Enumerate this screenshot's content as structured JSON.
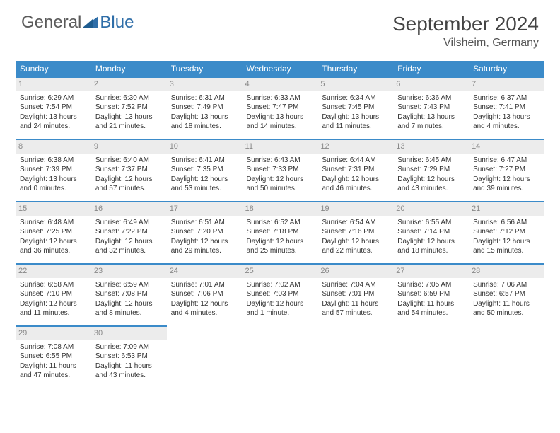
{
  "brand": {
    "part1": "General",
    "part2": "Blue",
    "part1_color": "#6a6a6a",
    "part2_color": "#2f6ea8"
  },
  "title": "September 2024",
  "location": "Vilsheim, Germany",
  "colors": {
    "header_bg": "#3b8bc9",
    "day_bg": "#ececec",
    "accent": "#3b8bc9"
  },
  "weekdays": [
    "Sunday",
    "Monday",
    "Tuesday",
    "Wednesday",
    "Thursday",
    "Friday",
    "Saturday"
  ],
  "days": [
    {
      "n": "1",
      "sr": "6:29 AM",
      "ss": "7:54 PM",
      "dl": "13 hours and 24 minutes."
    },
    {
      "n": "2",
      "sr": "6:30 AM",
      "ss": "7:52 PM",
      "dl": "13 hours and 21 minutes."
    },
    {
      "n": "3",
      "sr": "6:31 AM",
      "ss": "7:49 PM",
      "dl": "13 hours and 18 minutes."
    },
    {
      "n": "4",
      "sr": "6:33 AM",
      "ss": "7:47 PM",
      "dl": "13 hours and 14 minutes."
    },
    {
      "n": "5",
      "sr": "6:34 AM",
      "ss": "7:45 PM",
      "dl": "13 hours and 11 minutes."
    },
    {
      "n": "6",
      "sr": "6:36 AM",
      "ss": "7:43 PM",
      "dl": "13 hours and 7 minutes."
    },
    {
      "n": "7",
      "sr": "6:37 AM",
      "ss": "7:41 PM",
      "dl": "13 hours and 4 minutes."
    },
    {
      "n": "8",
      "sr": "6:38 AM",
      "ss": "7:39 PM",
      "dl": "13 hours and 0 minutes."
    },
    {
      "n": "9",
      "sr": "6:40 AM",
      "ss": "7:37 PM",
      "dl": "12 hours and 57 minutes."
    },
    {
      "n": "10",
      "sr": "6:41 AM",
      "ss": "7:35 PM",
      "dl": "12 hours and 53 minutes."
    },
    {
      "n": "11",
      "sr": "6:43 AM",
      "ss": "7:33 PM",
      "dl": "12 hours and 50 minutes."
    },
    {
      "n": "12",
      "sr": "6:44 AM",
      "ss": "7:31 PM",
      "dl": "12 hours and 46 minutes."
    },
    {
      "n": "13",
      "sr": "6:45 AM",
      "ss": "7:29 PM",
      "dl": "12 hours and 43 minutes."
    },
    {
      "n": "14",
      "sr": "6:47 AM",
      "ss": "7:27 PM",
      "dl": "12 hours and 39 minutes."
    },
    {
      "n": "15",
      "sr": "6:48 AM",
      "ss": "7:25 PM",
      "dl": "12 hours and 36 minutes."
    },
    {
      "n": "16",
      "sr": "6:49 AM",
      "ss": "7:22 PM",
      "dl": "12 hours and 32 minutes."
    },
    {
      "n": "17",
      "sr": "6:51 AM",
      "ss": "7:20 PM",
      "dl": "12 hours and 29 minutes."
    },
    {
      "n": "18",
      "sr": "6:52 AM",
      "ss": "7:18 PM",
      "dl": "12 hours and 25 minutes."
    },
    {
      "n": "19",
      "sr": "6:54 AM",
      "ss": "7:16 PM",
      "dl": "12 hours and 22 minutes."
    },
    {
      "n": "20",
      "sr": "6:55 AM",
      "ss": "7:14 PM",
      "dl": "12 hours and 18 minutes."
    },
    {
      "n": "21",
      "sr": "6:56 AM",
      "ss": "7:12 PM",
      "dl": "12 hours and 15 minutes."
    },
    {
      "n": "22",
      "sr": "6:58 AM",
      "ss": "7:10 PM",
      "dl": "12 hours and 11 minutes."
    },
    {
      "n": "23",
      "sr": "6:59 AM",
      "ss": "7:08 PM",
      "dl": "12 hours and 8 minutes."
    },
    {
      "n": "24",
      "sr": "7:01 AM",
      "ss": "7:06 PM",
      "dl": "12 hours and 4 minutes."
    },
    {
      "n": "25",
      "sr": "7:02 AM",
      "ss": "7:03 PM",
      "dl": "12 hours and 1 minute."
    },
    {
      "n": "26",
      "sr": "7:04 AM",
      "ss": "7:01 PM",
      "dl": "11 hours and 57 minutes."
    },
    {
      "n": "27",
      "sr": "7:05 AM",
      "ss": "6:59 PM",
      "dl": "11 hours and 54 minutes."
    },
    {
      "n": "28",
      "sr": "7:06 AM",
      "ss": "6:57 PM",
      "dl": "11 hours and 50 minutes."
    },
    {
      "n": "29",
      "sr": "7:08 AM",
      "ss": "6:55 PM",
      "dl": "11 hours and 47 minutes."
    },
    {
      "n": "30",
      "sr": "7:09 AM",
      "ss": "6:53 PM",
      "dl": "11 hours and 43 minutes."
    }
  ],
  "labels": {
    "sunrise": "Sunrise:",
    "sunset": "Sunset:",
    "daylight": "Daylight:"
  },
  "start_weekday": 0,
  "trailing_empty": 5
}
